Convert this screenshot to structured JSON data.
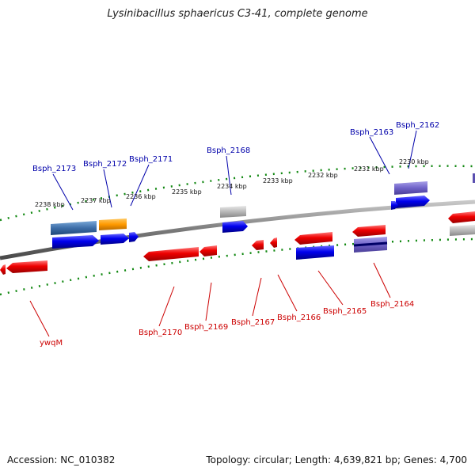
{
  "title": "Lysinibacillus sphaericus C3-41, complete genome",
  "footer": {
    "accession": "Accession: NC_010382",
    "topology": "Topology: circular; Length: 4,639,821 bp; Genes: 4,700"
  },
  "ticks": [
    "2238 kbp",
    "2237 kbp",
    "2236 kbp",
    "2235 kbp",
    "2234 kbp",
    "2233 kbp",
    "2232 kbp",
    "2231 kbp",
    "2230 kbp"
  ],
  "labels_top": [
    "Bsph_2173",
    "Bsph_2172",
    "Bsph_2171",
    "Bsph_2168",
    "Bsph_2163",
    "Bsph_2162"
  ],
  "labels_bottom": [
    "ywqM",
    "Bsph_2170",
    "Bsph_2169",
    "Bsph_2167",
    "Bsph_2166",
    "Bsph_2165",
    "Bsph_2164"
  ],
  "colors": {
    "forward_label": "#0000aa",
    "reverse_label": "#cc0000",
    "forward_gene": "#0000ee",
    "reverse_gene": "#ee0000",
    "tick": "#118811",
    "backbone": "#808080"
  }
}
